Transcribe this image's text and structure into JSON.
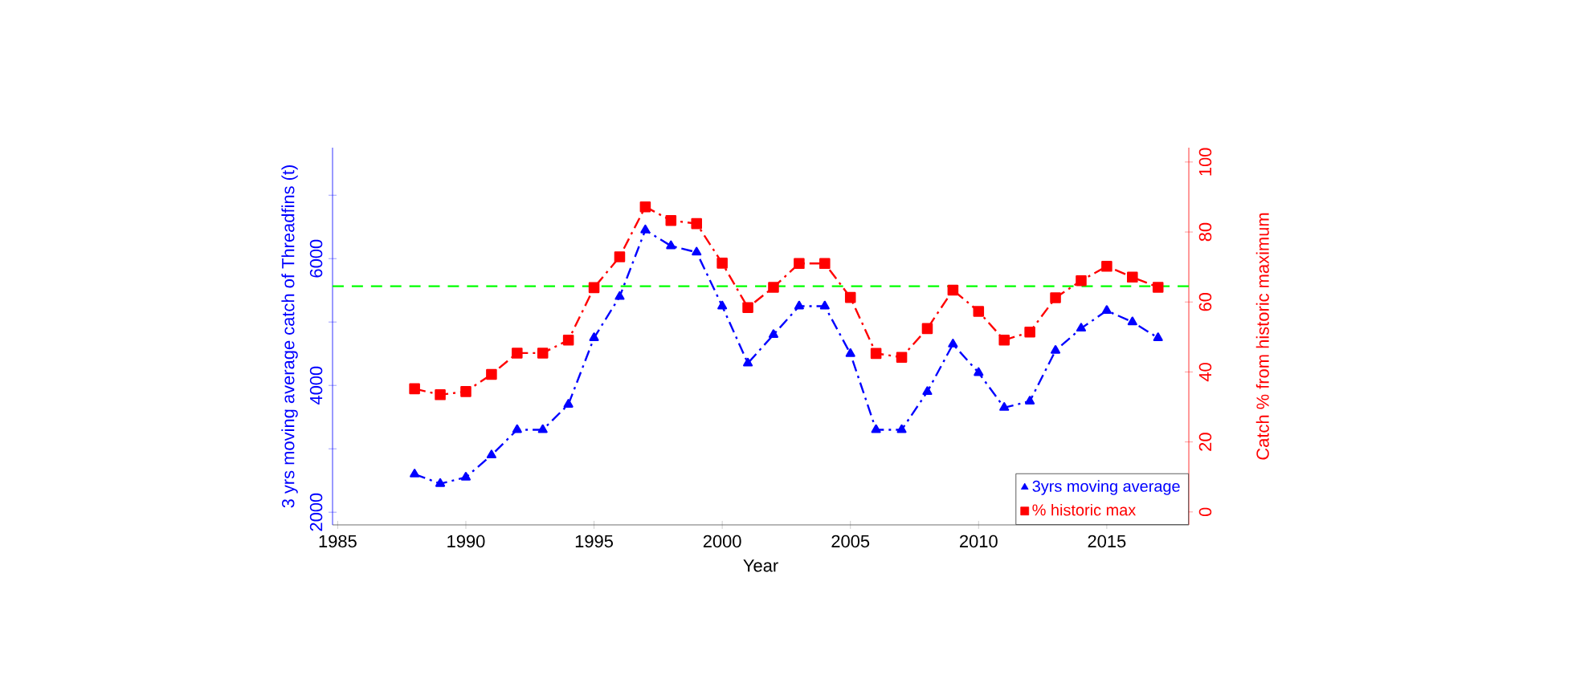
{
  "chart_data": {
    "type": "line",
    "x": [
      1988,
      1989,
      1990,
      1991,
      1992,
      1993,
      1994,
      1995,
      1996,
      1997,
      1998,
      1999,
      2000,
      2001,
      2002,
      2003,
      2004,
      2005,
      2006,
      2007,
      2008,
      2009,
      2010,
      2011,
      2012,
      2013,
      2014,
      2015,
      2016,
      2017
    ],
    "xlabel": "Year",
    "ylabel": "3 yrs moving average catch of Threadfins (t)",
    "y2label": "Catch % from historic maximum",
    "xlim": [
      1984.8,
      2018.2
    ],
    "xticks": [
      1985,
      1990,
      1995,
      2000,
      2005,
      2010,
      2015
    ],
    "ylim": [
      1800,
      7750
    ],
    "yticks": [
      2000,
      {
        "value": 3000,
        "label": null
      },
      4000,
      {
        "value": 5000,
        "label": null
      },
      6000,
      {
        "value": 7000,
        "label": null
      }
    ],
    "y2lim": [
      -3.7,
      104.1
    ],
    "y2ticks": [
      0,
      20,
      40,
      60,
      80,
      100
    ],
    "series": [
      {
        "name": "3yrs moving average",
        "color": "#0000ff",
        "marker": "triangle",
        "line_style": "dashed",
        "values": [
          2600,
          2450,
          2550,
          2900,
          3300,
          3300,
          3700,
          4750,
          5400,
          6450,
          6200,
          6100,
          5250,
          4350,
          4800,
          5250,
          5250,
          4500,
          3300,
          3300,
          3900,
          4650,
          4200,
          3650,
          3750,
          4550,
          4900,
          5180,
          5000,
          4750
        ]
      },
      {
        "name": "% historic max",
        "color": "#ff0000",
        "axis": "y2",
        "marker": "square",
        "line_style": "dashed",
        "values": [
          35.2,
          33.5,
          34.4,
          39.3,
          45.4,
          45.4,
          49.1,
          64.1,
          72.9,
          87.2,
          83.3,
          82.4,
          71.1,
          58.4,
          64.2,
          71,
          71,
          61.3,
          45.3,
          44.2,
          52.4,
          63.4,
          57.3,
          49.1,
          51.4,
          61.2,
          66.1,
          70.2,
          67.1,
          64.2
        ]
      }
    ],
    "ref_lines": [
      {
        "axis": "y2",
        "value": 64.5,
        "color": "#00ff00",
        "line_style": "dashed"
      }
    ],
    "legend": "bottom right"
  }
}
